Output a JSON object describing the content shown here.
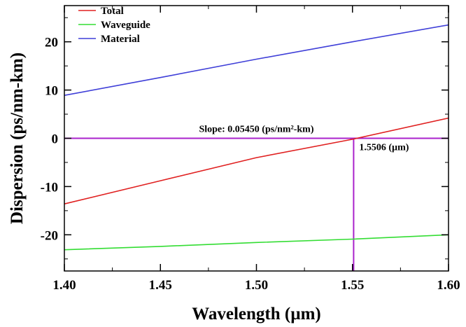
{
  "chart_data": {
    "type": "line",
    "title": "",
    "xlabel": "Wavelength (µm)",
    "ylabel": "Dispersion (ps/nm-km)",
    "xlim": [
      1.4,
      1.6
    ],
    "ylim": [
      -27.5,
      27.5
    ],
    "xticks": [
      1.4,
      1.45,
      1.5,
      1.55,
      1.6
    ],
    "xtick_labels": [
      "1.40",
      "1.45",
      "1.50",
      "1.55",
      "1.60"
    ],
    "yticks": [
      -20,
      -10,
      0,
      10,
      20
    ],
    "ytick_labels": [
      "-20",
      "-10",
      "0",
      "10",
      "20"
    ],
    "grid": false,
    "legend_position": "top-left",
    "series": [
      {
        "name": "Total",
        "color": "#e02020",
        "x": [
          1.4,
          1.45,
          1.5,
          1.55,
          1.6
        ],
        "y": [
          -13.6,
          -8.8,
          -4.0,
          -0.2,
          4.2
        ]
      },
      {
        "name": "Waveguide",
        "color": "#33dd33",
        "x": [
          1.4,
          1.45,
          1.5,
          1.55,
          1.6
        ],
        "y": [
          -23.1,
          -22.4,
          -21.6,
          -20.9,
          -20.0
        ]
      },
      {
        "name": "Material",
        "color": "#3f3fd8",
        "x": [
          1.4,
          1.45,
          1.5,
          1.55,
          1.6
        ],
        "y": [
          8.9,
          12.6,
          16.4,
          20.0,
          23.5
        ]
      }
    ],
    "reference_lines": {
      "color": "#aa22cc",
      "horizontal_y": 0,
      "vertical_x": 1.5506
    },
    "annotations": {
      "slope_text": "Slope: 0.05450 (ps/nm²-km)",
      "slope_anchor": {
        "x": 1.5,
        "y": 0
      },
      "crossing_text": "1.5506 (µm)",
      "crossing_anchor": {
        "x": 1.5506,
        "y": 0
      }
    }
  }
}
